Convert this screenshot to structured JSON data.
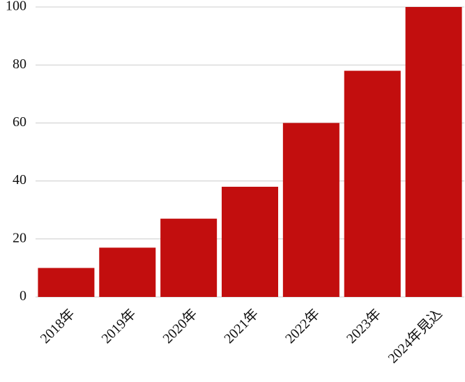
{
  "chart_data": {
    "type": "bar",
    "categories": [
      "2018年",
      "2019年",
      "2020年",
      "2021年",
      "2022年",
      "2023年",
      "2024年見込"
    ],
    "values": [
      10,
      17,
      27,
      38,
      60,
      78,
      100
    ],
    "color": "#c20e0e",
    "ylim": [
      0,
      100
    ],
    "yticks": [
      0,
      20,
      40,
      60,
      80,
      100
    ],
    "grid": true
  }
}
